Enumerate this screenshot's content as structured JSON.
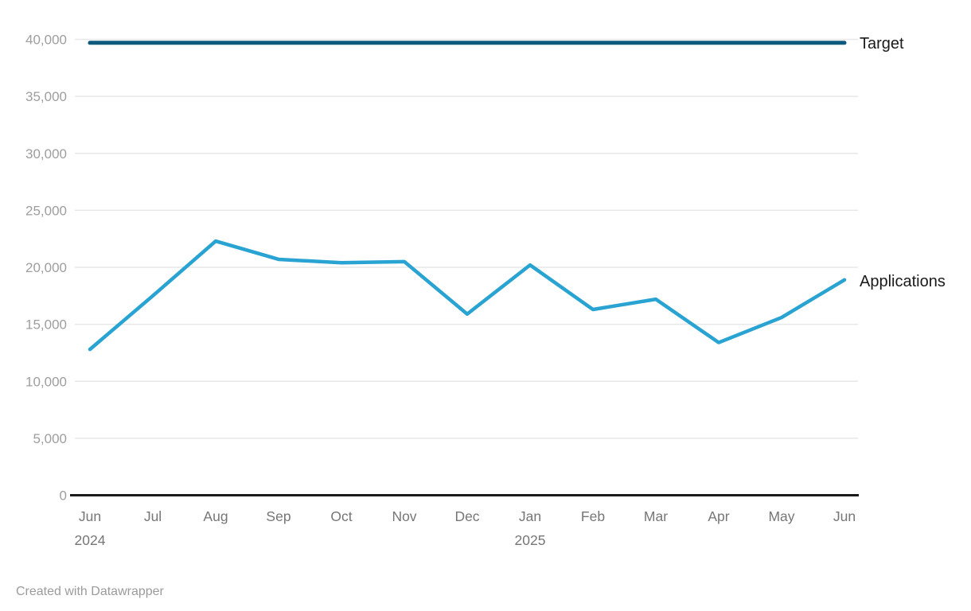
{
  "chart_data": {
    "type": "line",
    "categories": [
      "Jun",
      "Jul",
      "Aug",
      "Sep",
      "Oct",
      "Nov",
      "Dec",
      "Jan",
      "Feb",
      "Mar",
      "Apr",
      "May",
      "Jun"
    ],
    "year_labels": [
      {
        "index": 0,
        "text": "2024"
      },
      {
        "index": 7,
        "text": "2025"
      }
    ],
    "series": [
      {
        "name": "Applications",
        "color": "#29a3d2",
        "values": [
          12800,
          17500,
          22300,
          20700,
          20400,
          20500,
          15900,
          20200,
          16300,
          17200,
          13400,
          15600,
          18900
        ]
      },
      {
        "name": "Target",
        "color": "#0e5a7d",
        "constant_value": 39700
      }
    ],
    "ylim": [
      0,
      40000
    ],
    "yticks": [
      {
        "v": 0,
        "label": "0"
      },
      {
        "v": 5000,
        "label": "5,000"
      },
      {
        "v": 10000,
        "label": "10,000"
      },
      {
        "v": 15000,
        "label": "15,000"
      },
      {
        "v": 20000,
        "label": "20,000"
      },
      {
        "v": 25000,
        "label": "25,000"
      },
      {
        "v": 30000,
        "label": "30,000"
      },
      {
        "v": 35000,
        "label": "35,000"
      },
      {
        "v": 40000,
        "label": "40,000"
      }
    ],
    "grid": "horizontal",
    "legend_position": "right-of-line-ends",
    "title": "",
    "xlabel": "",
    "ylabel": ""
  },
  "colors": {
    "axis_line": "#1a1a1a",
    "gridline": "#e7e7e7",
    "y_tick_text": "#9e9e9e",
    "x_tick_text": "#767676",
    "series_label_text": "#1a1a1a",
    "footer_text": "#9b9b9b",
    "background": "#ffffff"
  },
  "footer": {
    "attribution": "Created with Datawrapper"
  }
}
